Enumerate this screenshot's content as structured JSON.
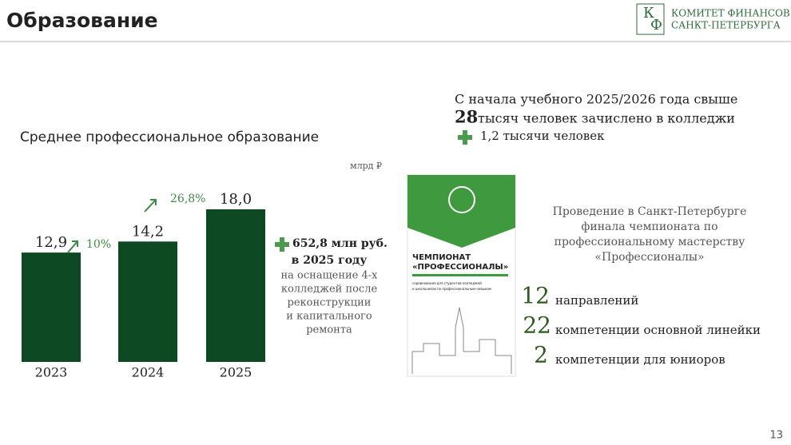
{
  "header": {
    "title": "Образование",
    "logo_letters": [
      "К",
      "Ф"
    ],
    "logo_lines": [
      "КОМИТЕТ ФИНАНСОВ",
      "САНКТ-ПЕТЕРБУРГА"
    ]
  },
  "chart_data": {
    "type": "bar",
    "title": "Среднее профессиональное образование",
    "unit": "млрд ₽",
    "categories": [
      "2023",
      "2024",
      "2025"
    ],
    "values": [
      12.9,
      14.2,
      18.0
    ],
    "value_labels": [
      "12,9",
      "14,2",
      "18,0"
    ],
    "color": "#0d4a23",
    "annotations": [
      "10%",
      "26,8%"
    ]
  },
  "investment": {
    "amount": "652,8 млн руб.",
    "year": "в 2025 году",
    "lines": [
      "на оснащение 4-х",
      "колледжей после",
      "реконструкции",
      "и капитального",
      "ремонта"
    ]
  },
  "enrollment": {
    "line1": "С начала учебного 2025/2026 года  свыше",
    "number": 28,
    "line2": "тысяч человек зачислено в колледжи",
    "increase": "1,2 тысячи человек"
  },
  "poster": {
    "title1": "ЧЕМПИОНАТ",
    "title2": "«ПРОФЕССИОНАЛЫ»",
    "small1": "соревнования для студентов колледжей",
    "small2": "и школьников по профессиональным навыкам"
  },
  "championship": {
    "lines": [
      "Проведение в Санкт-Петербурге",
      "финала чемпионата по",
      "профессиональному мастерству",
      "«Профессионалы»"
    ],
    "stats": [
      {
        "number": 12,
        "label": "направлений"
      },
      {
        "number": 22,
        "label": "компетенции основной линейки"
      },
      {
        "number": 2,
        "label": "компетенции для юниоров"
      }
    ]
  },
  "page_number": "13"
}
